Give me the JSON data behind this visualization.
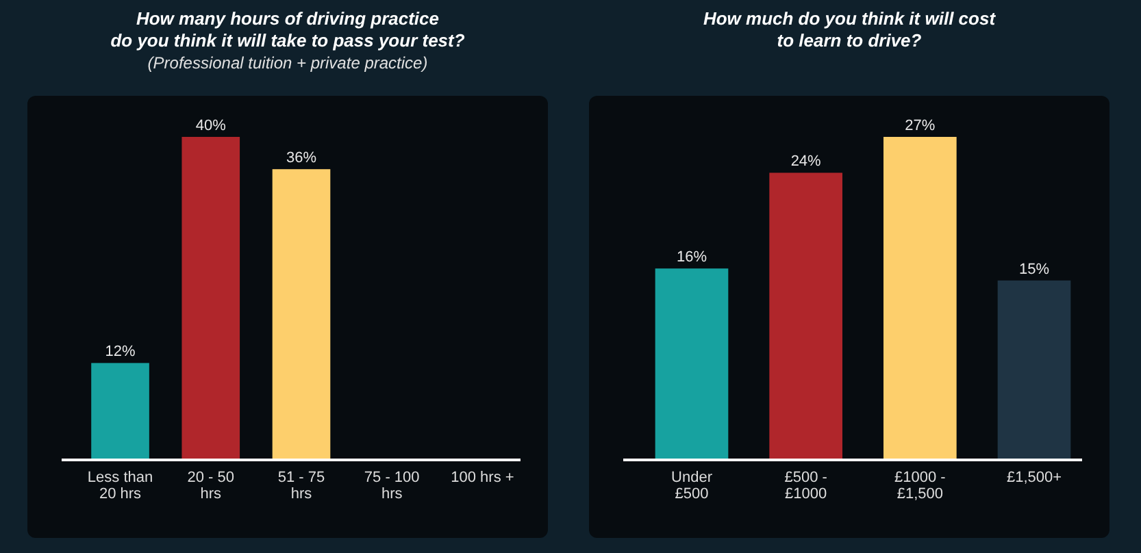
{
  "chart_data": [
    {
      "type": "bar",
      "title": "How many hours of driving practice do you think it will take to pass your test?",
      "subtitle": "(Professional tuition + private practice)",
      "categories": [
        "Less than 20 hrs",
        "20 - 50 hrs",
        "51 - 75 hrs",
        "75 - 100 hrs",
        "100 hrs +"
      ],
      "values": [
        12,
        40,
        36,
        null,
        null
      ],
      "colors": [
        "#17a2a0",
        "#b0262b",
        "#fdcf6c",
        null,
        null
      ],
      "value_labels": [
        "12%",
        "40%",
        "36%",
        null,
        null
      ]
    },
    {
      "type": "bar",
      "title": "How much do you think it will cost to learn to drive?",
      "categories": [
        "Under £500",
        "£500 - £1000",
        "£1000 - £1,500",
        "£1,500+"
      ],
      "values": [
        16,
        24,
        27,
        15
      ],
      "colors": [
        "#17a2a0",
        "#b0262b",
        "#fdcf6c",
        "#1f3444"
      ],
      "value_labels": [
        "16%",
        "24%",
        "27%",
        "15%"
      ]
    }
  ]
}
